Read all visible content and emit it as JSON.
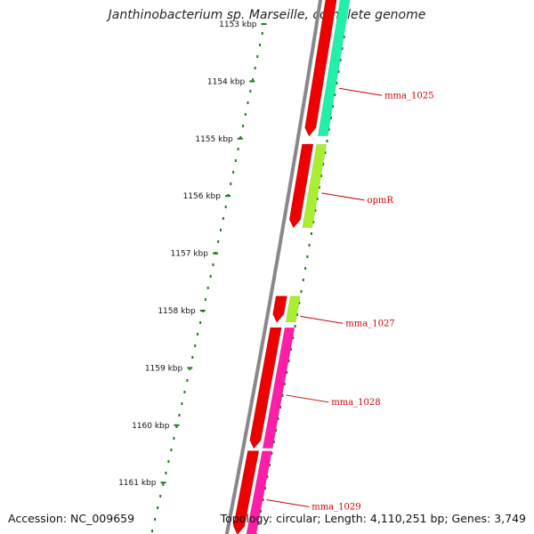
{
  "title": "Janthinobacterium sp. Marseille, complete genome",
  "accession": "Accession: NC_009659",
  "summary": "Topology: circular; Length: 4,110,251 bp; Genes: 3,749",
  "ruler": {
    "ticks": [
      "1153 kbp",
      "1154 kbp",
      "1155 kbp",
      "1156 kbp",
      "1157 kbp",
      "1158 kbp",
      "1159 kbp",
      "1160 kbp",
      "1161 kbp"
    ]
  },
  "colors": {
    "backbone": "#888888",
    "cds": "#ee0000",
    "dots": "#1f7a1f",
    "label": "#cc0000",
    "cogs": [
      "#22f0a8",
      "#a8ee33",
      "#a8ee33",
      "#ff1ea8",
      "#ff1ea8"
    ]
  },
  "features": [
    {
      "label": "mma_1025",
      "start_kbp": 1152.4,
      "end_kbp": 1154.95
    },
    {
      "label": "opmR",
      "start_kbp": 1155.1,
      "end_kbp": 1156.55
    },
    {
      "label": "mma_1027",
      "start_kbp": 1157.75,
      "end_kbp": 1158.2
    },
    {
      "label": "mma_1028",
      "start_kbp": 1158.3,
      "end_kbp": 1160.4
    },
    {
      "label": "mma_1029",
      "start_kbp": 1160.45,
      "end_kbp": 1161.9
    }
  ]
}
